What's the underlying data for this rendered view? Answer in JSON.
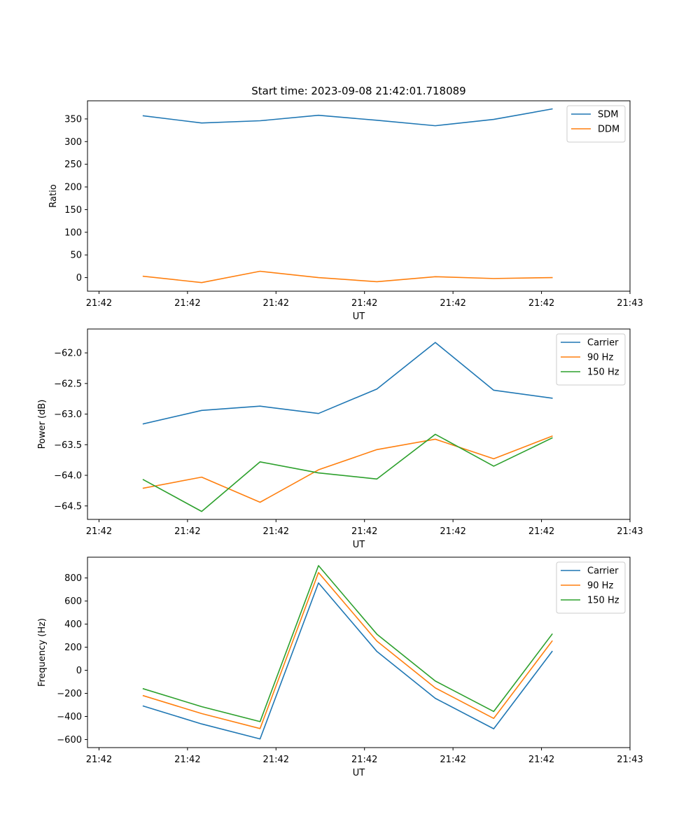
{
  "chart_data": [
    {
      "type": "line",
      "title": "Start time: 2023-09-08 21:42:01.718089",
      "xlabel": "UT",
      "ylabel": "Ratio",
      "x_tick_labels": [
        "21:42",
        "21:42",
        "21:42",
        "21:42",
        "21:42",
        "21:42",
        "21:43"
      ],
      "x_tick_values": [
        0,
        1,
        2,
        3,
        4,
        5,
        6
      ],
      "xlim": [
        -0.13,
        6.0
      ],
      "x": [
        0.5,
        1.16,
        1.82,
        2.48,
        3.14,
        3.8,
        4.46,
        5.12
      ],
      "ylim": [
        -30,
        390
      ],
      "y_ticks": [
        0,
        50,
        100,
        150,
        200,
        250,
        300,
        350
      ],
      "legend": "top-right",
      "series": [
        {
          "name": "SDM",
          "color": "#1f77b4",
          "values": [
            357,
            341,
            346,
            358,
            347,
            335,
            349,
            372
          ]
        },
        {
          "name": "DDM",
          "color": "#ff7f0e",
          "values": [
            3,
            -11,
            14,
            0,
            -9,
            2,
            -2,
            0
          ]
        }
      ]
    },
    {
      "type": "line",
      "title": "",
      "xlabel": "UT",
      "ylabel": "Power (dB)",
      "x_tick_labels": [
        "21:42",
        "21:42",
        "21:42",
        "21:42",
        "21:42",
        "21:42",
        "21:43"
      ],
      "x_tick_values": [
        0,
        1,
        2,
        3,
        4,
        5,
        6
      ],
      "xlim": [
        -0.13,
        6.0
      ],
      "x": [
        0.5,
        1.16,
        1.82,
        2.48,
        3.14,
        3.8,
        4.46,
        5.12
      ],
      "ylim": [
        -64.72,
        -61.61
      ],
      "y_ticks": [
        -64.5,
        -64.0,
        -63.5,
        -63.0,
        -62.5,
        -62.0
      ],
      "y_tick_labels": [
        "−64.5",
        "−64.0",
        "−63.5",
        "−63.0",
        "−62.5",
        "−62.0"
      ],
      "legend": "top-right",
      "series": [
        {
          "name": "Carrier",
          "color": "#1f77b4",
          "values": [
            -63.16,
            -62.94,
            -62.87,
            -62.99,
            -62.59,
            -61.83,
            -62.61,
            -62.74
          ]
        },
        {
          "name": "90 Hz",
          "color": "#ff7f0e",
          "values": [
            -64.21,
            -64.03,
            -64.44,
            -63.91,
            -63.58,
            -63.41,
            -63.73,
            -63.36
          ]
        },
        {
          "name": "150 Hz",
          "color": "#2ca02c",
          "values": [
            -64.07,
            -64.59,
            -63.78,
            -63.96,
            -64.06,
            -63.33,
            -63.85,
            -63.39
          ]
        }
      ]
    },
    {
      "type": "line",
      "title": "",
      "xlabel": "UT",
      "ylabel": "Frequency (Hz)",
      "x_tick_labels": [
        "21:42",
        "21:42",
        "21:42",
        "21:42",
        "21:42",
        "21:42",
        "21:43"
      ],
      "x_tick_values": [
        0,
        1,
        2,
        3,
        4,
        5,
        6
      ],
      "xlim": [
        -0.13,
        6.0
      ],
      "x": [
        0.5,
        1.16,
        1.82,
        2.48,
        3.14,
        3.8,
        4.46,
        5.12
      ],
      "ylim": [
        -670,
        980
      ],
      "y_ticks": [
        -600,
        -400,
        -200,
        0,
        200,
        400,
        600,
        800
      ],
      "y_tick_labels": [
        "−600",
        "−400",
        "−200",
        "0",
        "200",
        "400",
        "600",
        "800"
      ],
      "legend": "top-right",
      "series": [
        {
          "name": "Carrier",
          "color": "#1f77b4",
          "values": [
            -310,
            -465,
            -595,
            757,
            163,
            -243,
            -507,
            163
          ]
        },
        {
          "name": "90 Hz",
          "color": "#ff7f0e",
          "values": [
            -220,
            -375,
            -505,
            847,
            253,
            -153,
            -417,
            253
          ]
        },
        {
          "name": "150 Hz",
          "color": "#2ca02c",
          "values": [
            -160,
            -315,
            -445,
            907,
            313,
            -93,
            -357,
            313
          ]
        }
      ]
    }
  ]
}
